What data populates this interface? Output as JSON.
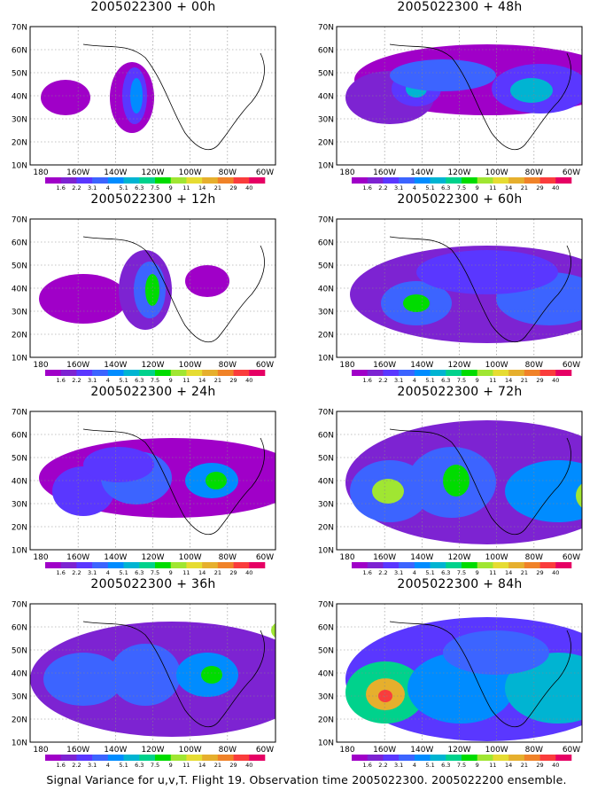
{
  "panels": [
    {
      "title": "2005022300 + 00h"
    },
    {
      "title": "2005022300 + 48h"
    },
    {
      "title": "2005022300 + 12h"
    },
    {
      "title": "2005022300 + 60h"
    },
    {
      "title": "2005022300 + 24h"
    },
    {
      "title": "2005022300 + 72h"
    },
    {
      "title": "2005022300 + 36h"
    },
    {
      "title": "2005022300 + 84h"
    }
  ],
  "lat_labels": [
    "70N",
    "60N",
    "50N",
    "40N",
    "30N",
    "20N",
    "10N"
  ],
  "lon_labels": [
    "180",
    "160W",
    "140W",
    "120W",
    "100W",
    "80W",
    "60W"
  ],
  "colorbar": {
    "labels": [
      "1.6",
      "2.2",
      "3.1",
      "4",
      "5.1",
      "6.3",
      "7.5",
      "9",
      "11",
      "14",
      "21",
      "29",
      "40"
    ],
    "colors": [
      "#a000c8",
      "#7d23d2",
      "#5a37ff",
      "#3c64ff",
      "#008cff",
      "#00b4d2",
      "#00d28c",
      "#00dc00",
      "#a0e632",
      "#e6dc32",
      "#e6af2d",
      "#f08228",
      "#fa3c3c",
      "#e60064"
    ]
  },
  "caption": "Signal Variance for u,v,T. Flight 19. Observation time 2005022300. 2005022200 ensemble."
}
